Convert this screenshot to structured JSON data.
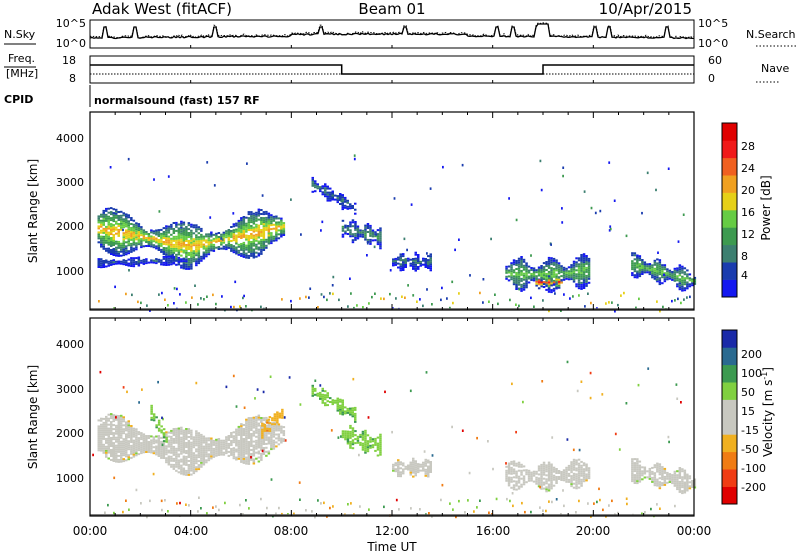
{
  "header": {
    "station": "Adak West (fitACF)",
    "beam": "Beam 01",
    "date": "10/Apr/2015"
  },
  "noise_panel": {
    "left_label": "N.Sky",
    "right_label": "N.Search",
    "left_ticks": [
      "10^5",
      "10^0"
    ],
    "right_ticks": [
      "10^5",
      "10^0"
    ]
  },
  "freq_panel": {
    "left_label_1": "Freq.",
    "left_label_2": "[MHz]",
    "left_ticks": [
      "18",
      "8"
    ],
    "right_label": "Nave",
    "right_ticks": [
      "60",
      "0"
    ],
    "cpid_label": "CPID",
    "program": "normalsound (fast) 157 RF"
  },
  "colors": {
    "power": [
      "#1418f0",
      "#1a3cae",
      "#3c7f70",
      "#3d9a50",
      "#66cc44",
      "#e6d018",
      "#f0a020",
      "#f06020",
      "#f01a1a",
      "#e00000"
    ],
    "velocity": [
      "#e00000",
      "#f03c14",
      "#f07c14",
      "#f0b020",
      "#c8c8c0",
      "#c8c8c0",
      "#80d040",
      "#3c9a50",
      "#2a6a90",
      "#1a2aa8"
    ]
  },
  "chart_data": [
    {
      "type": "heatmap",
      "name": "power",
      "xlabel": "",
      "ylabel": "Slant Range [km]",
      "xlim": [
        0,
        24
      ],
      "ylim": [
        180,
        4650
      ],
      "yticks": [
        "1000",
        "2000",
        "3000",
        "4000"
      ],
      "colorbar_label": "Power [dB]",
      "colorbar_ticks": [
        "4",
        "8",
        "12",
        "16",
        "20",
        "24",
        "28"
      ],
      "colorbar_range": [
        0,
        32
      ],
      "regions": [
        {
          "x": [
            0.3,
            7.7
          ],
          "center": [
            2000,
            1800,
            1600,
            1800,
            2050
          ],
          "width": 450,
          "value": 20
        },
        {
          "x": [
            0.3,
            3.8
          ],
          "center": [
            1230,
            1260,
            1300
          ],
          "width": 90,
          "value": 6
        },
        {
          "x": [
            8.8,
            10.5
          ],
          "center": [
            3000,
            2450
          ],
          "width": 150,
          "value": 8
        },
        {
          "x": [
            10.0,
            11.5
          ],
          "center": [
            2000,
            1800
          ],
          "width": 220,
          "value": 10
        },
        {
          "x": [
            12.0,
            13.5
          ],
          "center": [
            1250,
            1250
          ],
          "width": 170,
          "value": 8
        },
        {
          "x": [
            16.5,
            19.8
          ],
          "center": [
            1000,
            950,
            1050
          ],
          "width": 330,
          "value": 14
        },
        {
          "x": [
            17.7,
            18.7
          ],
          "center": [
            790,
            790
          ],
          "width": 120,
          "value": 28
        },
        {
          "x": [
            21.5,
            24.0
          ],
          "center": [
            1200,
            1000,
            800
          ],
          "width": 240,
          "value": 14
        }
      ]
    },
    {
      "type": "heatmap",
      "name": "velocity",
      "xlabel": "Time UT",
      "ylabel": "Slant Range [km]",
      "xlim": [
        0,
        24
      ],
      "ylim": [
        180,
        4650
      ],
      "xticks": [
        "00:00",
        "04:00",
        "08:00",
        "12:00",
        "16:00",
        "20:00",
        "00:00"
      ],
      "yticks": [
        "1000",
        "2000",
        "3000",
        "4000"
      ],
      "colorbar_label": "Velocity [m s^-1]",
      "colorbar_ticks": [
        "-200",
        "-100",
        "-50",
        "-15",
        "15",
        "50",
        "100",
        "200"
      ],
      "regions": [
        {
          "x": [
            0.3,
            7.7
          ],
          "center": [
            2000,
            1800,
            1600,
            1800,
            2050
          ],
          "width": 450,
          "value": 0
        },
        {
          "x": [
            2.4,
            3.0
          ],
          "center": [
            2500,
            1900
          ],
          "width": 150,
          "value": 40
        },
        {
          "x": [
            6.8,
            7.6
          ],
          "center": [
            2100,
            2500
          ],
          "width": 150,
          "value": -40
        },
        {
          "x": [
            8.8,
            10.5
          ],
          "center": [
            3000,
            2450
          ],
          "width": 150,
          "value": 40
        },
        {
          "x": [
            10.0,
            11.5
          ],
          "center": [
            2000,
            1750
          ],
          "width": 220,
          "value": 40
        },
        {
          "x": [
            12.0,
            13.5
          ],
          "center": [
            1250,
            1250
          ],
          "width": 170,
          "value": 0
        },
        {
          "x": [
            16.5,
            19.8
          ],
          "center": [
            1100,
            1050,
            1150
          ],
          "width": 280,
          "value": 0
        },
        {
          "x": [
            21.5,
            24.0
          ],
          "center": [
            1200,
            1050,
            900
          ],
          "width": 240,
          "value": 0
        }
      ]
    }
  ]
}
